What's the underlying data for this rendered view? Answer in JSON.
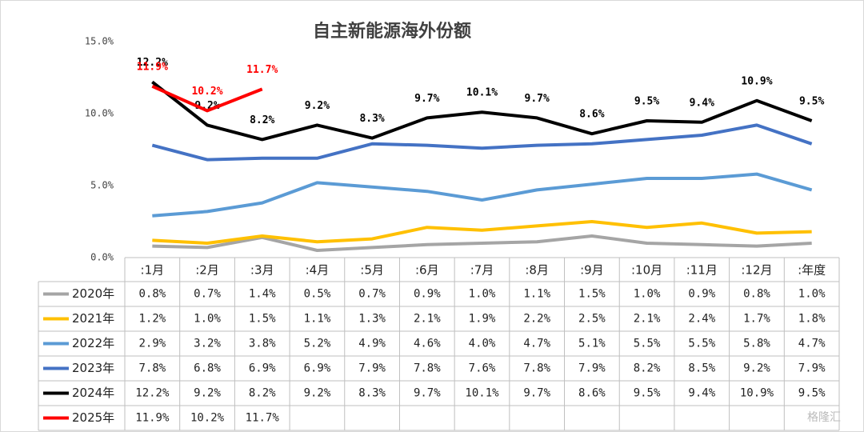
{
  "chart_data": {
    "type": "line",
    "title": "自主新能源海外份额",
    "categories": [
      ":1月",
      ":2月",
      ":3月",
      ":4月",
      ":5月",
      ":6月",
      ":7月",
      ":8月",
      ":9月",
      ":10月",
      ":11月",
      ":12月",
      ":年度"
    ],
    "ylim": [
      0,
      15
    ],
    "yticks": [
      {
        "value": 0,
        "label": "0.0%"
      },
      {
        "value": 5,
        "label": "5.0%"
      },
      {
        "value": 10,
        "label": "10.0%"
      },
      {
        "value": 15,
        "label": "15.0%"
      }
    ],
    "series": [
      {
        "name": "2020年",
        "color": "#a5a5a5",
        "show_labels": false,
        "values": [
          0.8,
          0.7,
          1.4,
          0.5,
          0.7,
          0.9,
          1.0,
          1.1,
          1.5,
          1.0,
          0.9,
          0.8,
          1.0
        ],
        "value_labels": [
          "0.8%",
          "0.7%",
          "1.4%",
          "0.5%",
          "0.7%",
          "0.9%",
          "1.0%",
          "1.1%",
          "1.5%",
          "1.0%",
          "0.9%",
          "0.8%",
          "1.0%"
        ]
      },
      {
        "name": "2021年",
        "color": "#ffc000",
        "show_labels": false,
        "values": [
          1.2,
          1.0,
          1.5,
          1.1,
          1.3,
          2.1,
          1.9,
          2.2,
          2.5,
          2.1,
          2.4,
          1.7,
          1.8
        ],
        "value_labels": [
          "1.2%",
          "1.0%",
          "1.5%",
          "1.1%",
          "1.3%",
          "2.1%",
          "1.9%",
          "2.2%",
          "2.5%",
          "2.1%",
          "2.4%",
          "1.7%",
          "1.8%"
        ]
      },
      {
        "name": "2022年",
        "color": "#5b9bd5",
        "show_labels": false,
        "values": [
          2.9,
          3.2,
          3.8,
          5.2,
          4.9,
          4.6,
          4.0,
          4.7,
          5.1,
          5.5,
          5.5,
          5.8,
          4.7
        ],
        "value_labels": [
          "2.9%",
          "3.2%",
          "3.8%",
          "5.2%",
          "4.9%",
          "4.6%",
          "4.0%",
          "4.7%",
          "5.1%",
          "5.5%",
          "5.5%",
          "5.8%",
          "4.7%"
        ]
      },
      {
        "name": "2023年",
        "color": "#4472c4",
        "show_labels": false,
        "values": [
          7.8,
          6.8,
          6.9,
          6.9,
          7.9,
          7.8,
          7.6,
          7.8,
          7.9,
          8.2,
          8.5,
          9.2,
          7.9
        ],
        "value_labels": [
          "7.8%",
          "6.8%",
          "6.9%",
          "6.9%",
          "7.9%",
          "7.8%",
          "7.6%",
          "7.8%",
          "7.9%",
          "8.2%",
          "8.5%",
          "9.2%",
          "7.9%"
        ]
      },
      {
        "name": "2024年",
        "color": "#000000",
        "show_labels": true,
        "values": [
          12.2,
          9.2,
          8.2,
          9.2,
          8.3,
          9.7,
          10.1,
          9.7,
          8.6,
          9.5,
          9.4,
          10.9,
          9.5
        ],
        "value_labels": [
          "12.2%",
          "9.2%",
          "8.2%",
          "9.2%",
          "8.3%",
          "9.7%",
          "10.1%",
          "9.7%",
          "8.6%",
          "9.5%",
          "9.4%",
          "10.9%",
          "9.5%"
        ]
      },
      {
        "name": "2025年",
        "color": "#ff0000",
        "show_labels": true,
        "values": [
          11.9,
          10.2,
          11.7,
          null,
          null,
          null,
          null,
          null,
          null,
          null,
          null,
          null,
          null
        ],
        "value_labels": [
          "11.9%",
          "10.2%",
          "11.7%",
          null,
          null,
          null,
          null,
          null,
          null,
          null,
          null,
          null,
          null
        ]
      }
    ],
    "watermark": "格隆汇"
  }
}
